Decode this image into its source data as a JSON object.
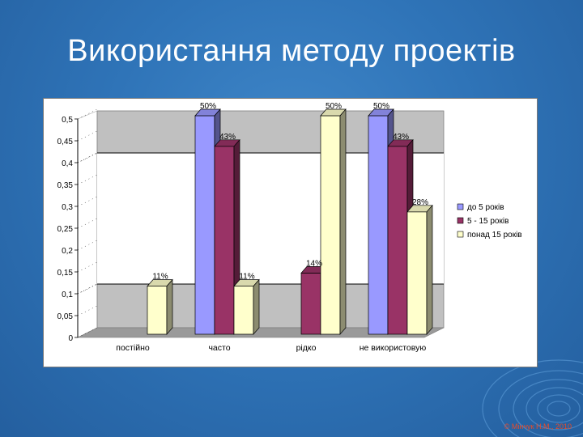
{
  "slide": {
    "title": "Використання методу проектів",
    "footer": "© Мінчук Н.М., 2010"
  },
  "chart_data": {
    "type": "bar",
    "categories": [
      "постійно",
      "часто",
      "рідко",
      "не використовую"
    ],
    "series": [
      {
        "name": "до 5 років",
        "color": "#9999ff",
        "values": [
          0,
          0.5,
          0,
          0.5
        ],
        "labels": [
          "",
          "50%",
          "",
          "50%"
        ]
      },
      {
        "name": "5 - 15 років",
        "color": "#993366",
        "values": [
          0,
          0.43,
          0.14,
          0.43
        ],
        "labels": [
          "",
          "43%",
          "14%",
          "43%"
        ]
      },
      {
        "name": "понад 15 років",
        "color": "#ffffcc",
        "values": [
          0.11,
          0.11,
          0.5,
          0.28
        ],
        "labels": [
          "11%",
          "11%",
          "50%",
          "28%"
        ]
      }
    ],
    "yticks": [
      "0",
      "0,05",
      "0,1",
      "0,15",
      "0,2",
      "0,25",
      "0,3",
      "0,35",
      "0,4",
      "0,45",
      "0,5"
    ],
    "ylim": [
      0,
      0.5
    ],
    "ytick_step": 0.05,
    "gridlines": [
      0.1,
      0.4
    ],
    "legend_position": "right"
  }
}
